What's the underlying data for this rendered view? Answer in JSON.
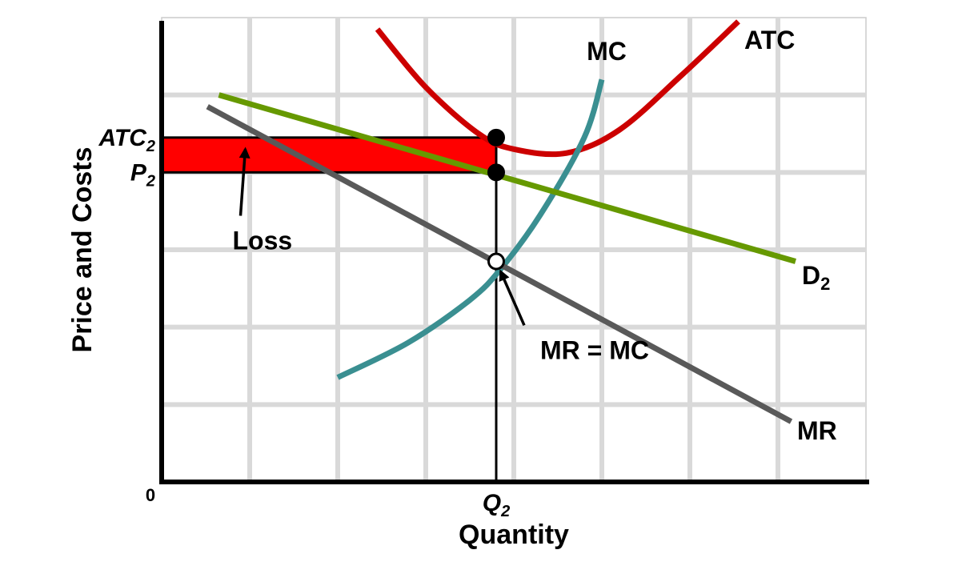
{
  "chart_data": {
    "type": "line",
    "title": "",
    "xlabel": "Quantity",
    "ylabel": "Price and Costs",
    "origin_label": "0",
    "xlim": [
      0,
      8
    ],
    "ylim": [
      0,
      6
    ],
    "grid": true,
    "x_ticks": [
      {
        "main": "Q",
        "sub": "2",
        "value": 3.8
      }
    ],
    "y_ticks": [
      {
        "main": "ATC",
        "sub": "2",
        "value": 4.45
      },
      {
        "main": "P",
        "sub": "2",
        "value": 4.0
      }
    ],
    "series": [
      {
        "name": "ATC",
        "color": "#cc0000",
        "points": [
          [
            2.45,
            5.85
          ],
          [
            3.0,
            5.1
          ],
          [
            3.6,
            4.5
          ],
          [
            4.0,
            4.3
          ],
          [
            4.6,
            4.25
          ],
          [
            5.2,
            4.55
          ],
          [
            5.9,
            5.25
          ],
          [
            6.55,
            5.95
          ]
        ]
      },
      {
        "name": "MC",
        "color": "#3a8f91",
        "points": [
          [
            2.0,
            1.35
          ],
          [
            2.8,
            1.8
          ],
          [
            3.5,
            2.35
          ],
          [
            3.85,
            2.75
          ],
          [
            4.3,
            3.45
          ],
          [
            4.8,
            4.45
          ],
          [
            5.0,
            5.2
          ]
        ]
      },
      {
        "name": "D",
        "name_sub": "2",
        "color": "#669900",
        "points": [
          [
            0.65,
            5.0
          ],
          [
            7.2,
            2.85
          ]
        ]
      },
      {
        "name": "MR",
        "color": "#595959",
        "points": [
          [
            0.52,
            4.85
          ],
          [
            7.15,
            0.78
          ]
        ]
      }
    ],
    "loss_area": {
      "x": [
        0,
        3.8
      ],
      "y": [
        4.0,
        4.45
      ],
      "color": "#ff0000"
    },
    "points": [
      {
        "x": 3.8,
        "y": 4.45,
        "filled": true
      },
      {
        "x": 3.8,
        "y": 4.0,
        "filled": true
      },
      {
        "x": 3.8,
        "y": 2.85,
        "filled": false
      }
    ],
    "annotations": [
      {
        "text": "Loss",
        "at": [
          0.95,
          3.15
        ],
        "arrow_to": [
          0.95,
          4.3
        ]
      },
      {
        "text": "MR = MC",
        "at": [
          4.3,
          1.9
        ],
        "arrow_to": [
          3.85,
          2.72
        ]
      }
    ]
  }
}
